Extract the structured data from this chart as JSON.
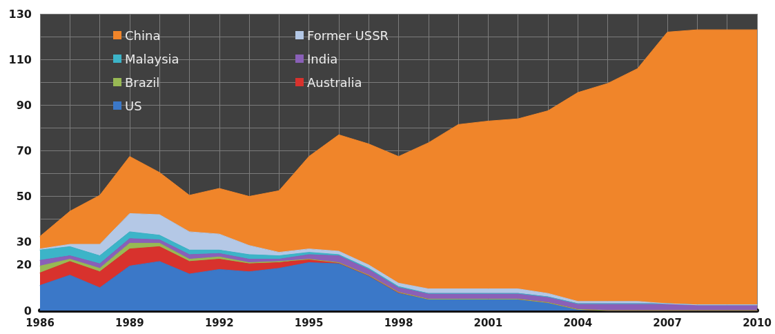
{
  "chart_data": {
    "type": "area",
    "stacked": true,
    "categories": [
      "1986",
      null,
      null,
      "1989",
      null,
      null,
      "1992",
      null,
      null,
      "1995",
      null,
      null,
      "1998",
      null,
      null,
      "2001",
      null,
      null,
      "2004",
      null,
      null,
      "2007",
      null,
      null,
      "2010"
    ],
    "series": [
      {
        "name": "US",
        "color": "#3b78c8",
        "values": [
          11,
          15.5,
          10,
          19.5,
          21.5,
          16,
          18,
          17,
          18.5,
          21,
          20.5,
          15,
          7.5,
          5,
          5,
          5,
          5,
          3.5,
          0.5,
          0,
          0,
          0,
          0,
          0,
          0
        ]
      },
      {
        "name": "Australia",
        "color": "#d8322d",
        "values": [
          5.5,
          6,
          7,
          7.5,
          6.5,
          5.5,
          4.5,
          3.5,
          2.5,
          1.5,
          0.5,
          0.5,
          0.5,
          0,
          0,
          0,
          0,
          0,
          0,
          0,
          0,
          0,
          0,
          0,
          0
        ]
      },
      {
        "name": "Brazil",
        "color": "#98b954",
        "values": [
          3,
          1,
          1.5,
          2.5,
          1.5,
          1,
          1,
          0.5,
          0.5,
          0,
          0,
          0,
          0,
          0,
          0,
          0,
          0,
          0,
          0,
          0,
          0,
          0,
          0,
          0,
          0
        ]
      },
      {
        "name": "India",
        "color": "#8a60b8",
        "values": [
          2.5,
          1.5,
          2,
          2,
          1.5,
          2,
          1.5,
          1.5,
          1,
          2,
          3,
          2.5,
          2,
          2.5,
          2.5,
          2.5,
          2.5,
          2.5,
          2.5,
          3,
          3,
          3,
          2.5,
          2.5,
          2.5
        ]
      },
      {
        "name": "Malaysia",
        "color": "#3cb4c8",
        "values": [
          4.5,
          4,
          3.5,
          3,
          2,
          2,
          1.5,
          2,
          1.5,
          1,
          0.5,
          0.5,
          0.5,
          0,
          0,
          0,
          0,
          0,
          0,
          0,
          0,
          0,
          0,
          0,
          0
        ]
      },
      {
        "name": "Former USSR",
        "color": "#b4c8e6",
        "values": [
          0.5,
          1,
          5,
          8,
          9,
          8,
          7,
          4,
          1.5,
          1.5,
          1.5,
          1.5,
          1.5,
          2,
          2,
          2,
          2,
          1.5,
          1,
          1,
          1,
          0,
          0,
          0,
          0
        ]
      },
      {
        "name": "China",
        "color": "#f0852a",
        "values": [
          5.5,
          14.5,
          21.5,
          25,
          18.5,
          16,
          20,
          21.5,
          27,
          40.5,
          51,
          53,
          55.5,
          64,
          72,
          73.5,
          74.5,
          80,
          91.5,
          95.5,
          102,
          119,
          120.5,
          120.5,
          120.5
        ]
      }
    ],
    "ylim": [
      0,
      130
    ],
    "yticks": [
      0,
      20,
      30,
      {
        "value": 40,
        "label": null
      },
      50,
      {
        "value": 60,
        "label": null
      },
      70,
      {
        "value": 80,
        "label": null
      },
      90,
      {
        "value": 100,
        "label": null
      },
      110,
      {
        "value": 120,
        "label": null
      },
      130
    ],
    "grid": true,
    "legend": "top left",
    "marker": "none"
  }
}
